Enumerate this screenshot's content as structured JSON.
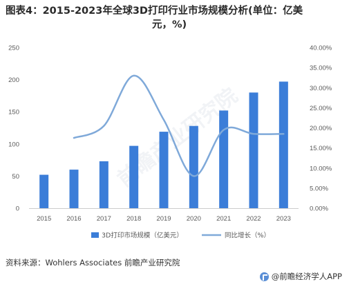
{
  "header": {
    "title_line1": "图表4：2015-2023年全球3D打印行业市场规模分析(单位：亿美",
    "title_line2": "元，%)"
  },
  "footer": {
    "source": "资料来源：Wohlers Associates 前瞻产业研究院",
    "brand": "@前瞻经济学人APP"
  },
  "colors": {
    "bar": "#3b7dd8",
    "line": "#7fa9d9",
    "axis": "#cccccc",
    "text": "#595959"
  },
  "icons": {
    "brand_logo": "qianzhan-logo-icon"
  },
  "chart_data": {
    "type": "bar",
    "categories": [
      "2015",
      "2016",
      "2017",
      "2018",
      "2019",
      "2020",
      "2021",
      "2022",
      "2023"
    ],
    "series": [
      {
        "name": "3D打印市场规模（亿美元）",
        "type": "bar",
        "axis": "left",
        "values": [
          52,
          60,
          73,
          97,
          119,
          128,
          152,
          180,
          197
        ]
      },
      {
        "name": "同比增长（%）",
        "type": "line",
        "axis": "right",
        "values": [
          null,
          17.5,
          20.5,
          33,
          22,
          8,
          19.5,
          18.5,
          18.5
        ]
      }
    ],
    "ylim_left": [
      0,
      250
    ],
    "yticks_left": [
      0,
      50,
      100,
      150,
      200,
      250
    ],
    "ylim_right": [
      0,
      40
    ],
    "yticks_right": [
      "0.00%",
      "5.00%",
      "10.00%",
      "15.00%",
      "20.00%",
      "25.00%",
      "30.00%",
      "35.00%",
      "40.00%"
    ],
    "legend_position": "bottom",
    "grid": false
  }
}
